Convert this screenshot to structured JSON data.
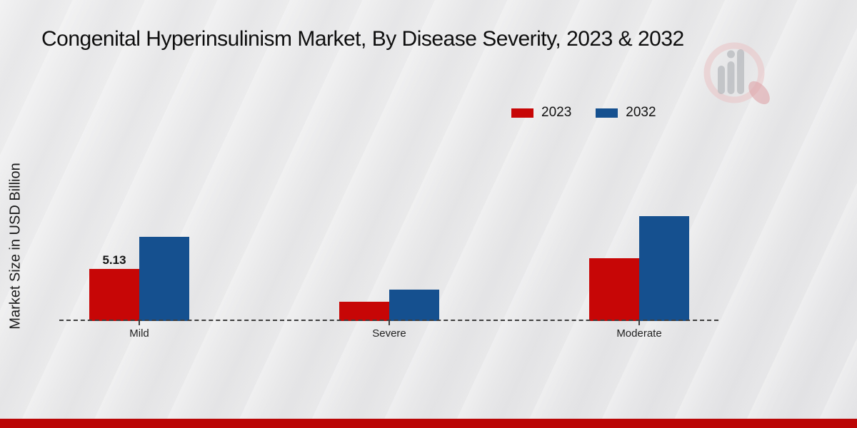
{
  "header": {
    "title": "Congenital Hyperinsulinism Market, By Disease Severity, 2023 & 2032"
  },
  "footer": {
    "accent_color": "#bb0606"
  },
  "watermark": {
    "icon": "magnifier-bar-chart-logo",
    "circle_color": "#e9c2c4",
    "handle_color": "#dda4a8",
    "bars_color": "#b7babe"
  },
  "chart_data": {
    "type": "bar",
    "title": "Congenital Hyperinsulinism Market, By Disease Severity, 2023 & 2032",
    "categories": [
      "Mild",
      "Severe",
      "Moderate"
    ],
    "series": [
      {
        "name": "2023",
        "color": "#c70606",
        "values": [
          5.13,
          1.9,
          6.2
        ],
        "data_labels": [
          "5.13",
          "",
          ""
        ]
      },
      {
        "name": "2032",
        "color": "#15508f",
        "values": [
          8.3,
          3.1,
          10.3
        ],
        "data_labels": [
          "",
          "",
          ""
        ]
      }
    ],
    "xlabel": "",
    "ylabel": "Market Size in USD Billion",
    "ylim": [
      0,
      11
    ],
    "grid": false,
    "y_axis_ticks_visible": false,
    "legend_position": "top-right",
    "baseline_style": "dashed"
  }
}
